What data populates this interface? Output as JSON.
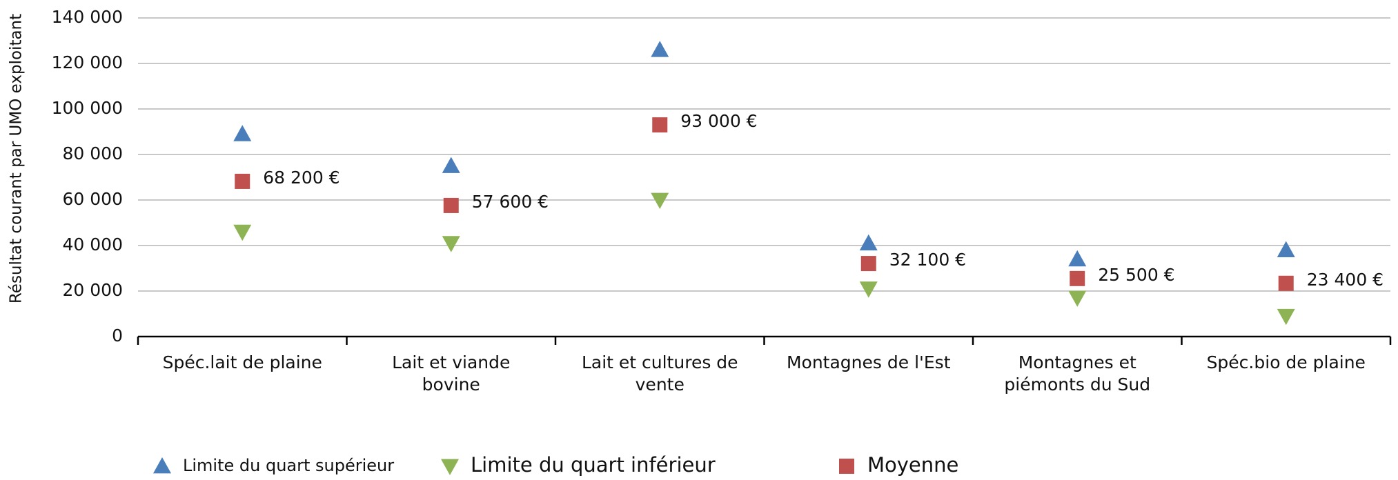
{
  "chart_data": {
    "type": "scatter",
    "y_label": "Résultat courant par UMO exploitant",
    "categories": [
      "Spéc.lait de plaine",
      "Lait et viande bovine",
      "Lait et cultures de vente",
      "Montagnes de l'Est",
      "Montagnes et piémonts du Sud",
      "Spéc.bio de plaine"
    ],
    "series": [
      {
        "name": "Limite du quart supérieur",
        "color": "#4a7ebb",
        "marker": "triangle-up",
        "values": [
          89000,
          75000,
          126000,
          41000,
          34000,
          38000
        ]
      },
      {
        "name": "Limite du quart inférieur",
        "color": "#8db354",
        "marker": "triangle-down",
        "values": [
          46000,
          41000,
          60000,
          21000,
          17000,
          9000
        ]
      },
      {
        "name": "Moyenne",
        "color": "#c0504d",
        "marker": "square",
        "values": [
          68200,
          57600,
          93000,
          32100,
          25500,
          23400
        ],
        "value_labels": [
          "68 200 €",
          "57 600 €",
          "93 000 €",
          "32 100 €",
          "25 500 €",
          "23 400 €"
        ]
      }
    ],
    "ylim": [
      0,
      140000
    ],
    "yticks": [
      0,
      {
        "value": 20000,
        "label": "20 000"
      },
      {
        "value": 40000,
        "label": "40 000"
      },
      {
        "value": 60000,
        "label": "60 000"
      },
      {
        "value": 80000,
        "label": "80 000"
      },
      {
        "value": 100000,
        "label": "100 000"
      },
      {
        "value": 120000,
        "label": "120 000"
      },
      {
        "value": 140000,
        "label": "140 000"
      }
    ],
    "grid": true
  }
}
